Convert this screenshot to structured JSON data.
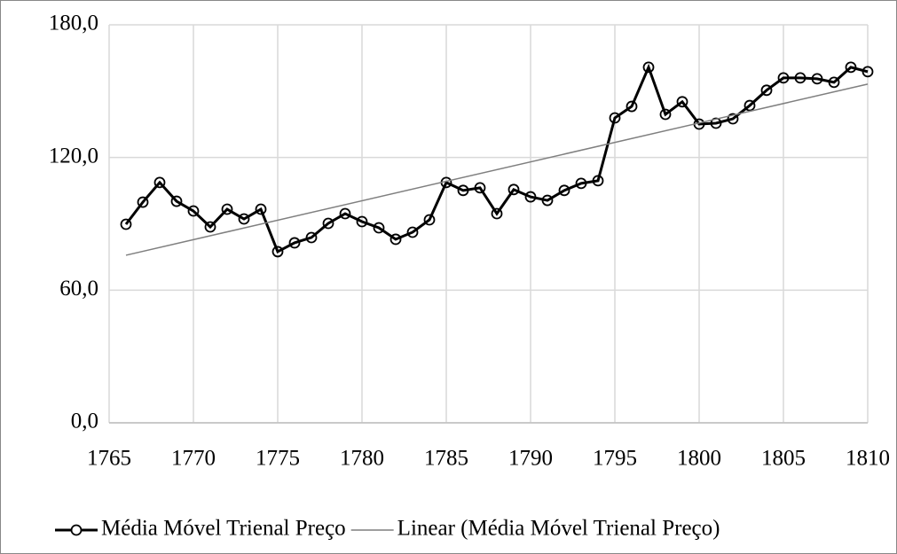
{
  "chart_data": {
    "type": "line",
    "x": [
      1766,
      1767,
      1768,
      1769,
      1770,
      1771,
      1772,
      1773,
      1774,
      1775,
      1776,
      1777,
      1778,
      1779,
      1780,
      1781,
      1782,
      1783,
      1784,
      1785,
      1786,
      1787,
      1788,
      1789,
      1790,
      1791,
      1792,
      1793,
      1794,
      1795,
      1796,
      1797,
      1798,
      1799,
      1800,
      1801,
      1802,
      1803,
      1804,
      1805,
      1806,
      1807,
      1808,
      1809,
      1810
    ],
    "series": [
      {
        "name": "Média Móvel Trienal Preço",
        "color": "#000000",
        "marker": "circle",
        "values": [
          89.8,
          99.8,
          108.7,
          100.2,
          95.8,
          88.6,
          96.6,
          92.2,
          96.6,
          77.4,
          81.4,
          83.8,
          90.2,
          94.6,
          91.0,
          88.2,
          83.0,
          86.2,
          91.8,
          108.7,
          105.1,
          106.3,
          94.6,
          105.5,
          102.2,
          100.6,
          105.1,
          108.3,
          109.5,
          137.9,
          143.1,
          160.8,
          139.5,
          145.2,
          135.1,
          135.5,
          137.5,
          143.5,
          150.4,
          156.0,
          156.0,
          155.6,
          154.0,
          160.8,
          158.8
        ]
      },
      {
        "name": "Linear (Média Móvel Trienal Preço)",
        "color": "#7f7f7f",
        "x": [
          1766,
          1810
        ],
        "values": [
          75.8,
          153.2
        ]
      }
    ],
    "xlim": [
      1765,
      1810
    ],
    "xticks": [
      1765,
      1770,
      1775,
      1780,
      1785,
      1790,
      1795,
      1800,
      1805,
      1810
    ],
    "ylim": [
      0,
      180
    ],
    "yticks": [
      {
        "value": 0,
        "label": "0,0"
      },
      {
        "value": 60,
        "label": "60,0"
      },
      {
        "value": 120,
        "label": "120,0"
      },
      {
        "value": 180,
        "label": "180,0"
      }
    ],
    "grid": true,
    "legend": "bottom"
  }
}
